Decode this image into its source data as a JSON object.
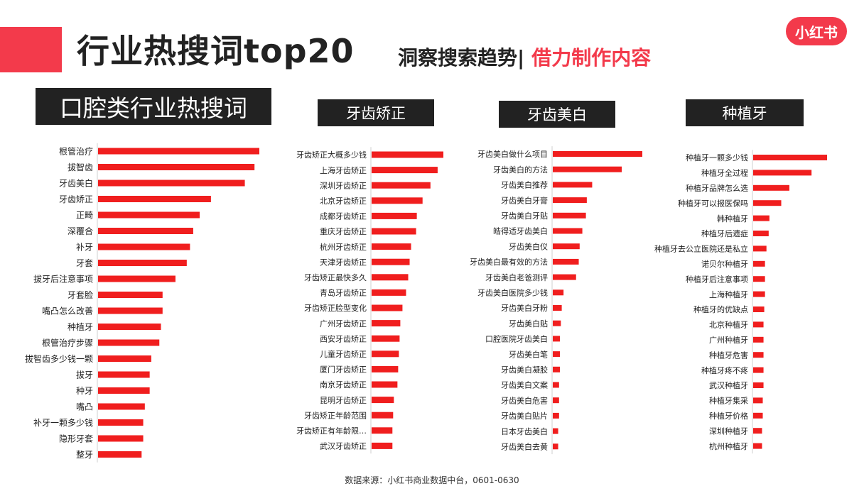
{
  "header": {
    "title": "行业热搜词top20",
    "subtitle_part1": "洞察搜索趋势|",
    "subtitle_part2": "借力制作内容",
    "logo_text": "小红书",
    "accent_color": "#f33a4b"
  },
  "source_note": "数据来源：小红书商业数据中台，0601-0630",
  "chart_data": [
    {
      "type": "bar",
      "orientation": "horizontal",
      "title": "口腔类行业热搜词",
      "bar_color": "#f01e1e",
      "categories": [
        "根管治疗",
        "拔智齿",
        "牙齿美白",
        "牙齿矫正",
        "正畸",
        "深覆合",
        "补牙",
        "牙套",
        "拔牙后注意事项",
        "牙套脸",
        "嘴凸怎么改善",
        "种植牙",
        "根管治疗步骤",
        "拔智齿多少钱一颗",
        "拔牙",
        "种牙",
        "嘴凸",
        "补牙一颗多少钱",
        "隐形牙套",
        "整牙"
      ],
      "values": [
        100,
        97,
        91,
        70,
        63,
        59,
        57,
        55,
        48,
        40,
        40,
        39,
        38,
        33,
        32,
        32,
        29,
        28,
        28,
        27
      ]
    },
    {
      "type": "bar",
      "orientation": "horizontal",
      "title": "牙齿矫正",
      "bar_color": "#f01e1e",
      "categories": [
        "牙齿矫正大概多少钱",
        "上海牙齿矫正",
        "深圳牙齿矫正",
        "北京牙齿矫正",
        "成都牙齿矫正",
        "重庆牙齿矫正",
        "杭州牙齿矫正",
        "天津牙齿矫正",
        "牙齿矫正最快多久",
        "青岛牙齿矫正",
        "牙齿矫正脸型变化",
        "广州牙齿矫正",
        "西安牙齿矫正",
        "儿童牙齿矫正",
        "厦门牙齿矫正",
        "南京牙齿矫正",
        "昆明牙齿矫正",
        "牙齿矫正年龄范围",
        "牙齿矫正有年龄限…",
        "武汉牙齿矫正"
      ],
      "values": [
        100,
        92,
        82,
        71,
        63,
        62,
        55,
        53,
        51,
        48,
        43,
        40,
        39,
        38,
        37,
        36,
        31,
        30,
        29,
        29
      ]
    },
    {
      "type": "bar",
      "orientation": "horizontal",
      "title": "牙齿美白",
      "bar_color": "#f01e1e",
      "categories": [
        "牙齿美白做什么项目",
        "牙齿美白的方法",
        "牙齿美白推荐",
        "牙齿美白牙膏",
        "牙齿美白牙贴",
        "皓得适牙齿美白",
        "牙齿美白仪",
        "牙齿美白最有效的方法",
        "牙齿美白老爸测评",
        "牙齿美白医院多少钱",
        "牙齿美白牙粉",
        "牙齿美白贴",
        "口腔医院牙齿美白",
        "牙齿美白笔",
        "牙齿美白凝胶",
        "牙齿美白文案",
        "牙齿美白危害",
        "牙齿美白贴片",
        "日本牙齿美白",
        "牙齿美白去黄"
      ],
      "values": [
        100,
        77,
        44,
        38,
        37,
        33,
        30,
        29,
        26,
        12,
        10,
        9,
        8,
        8,
        8,
        7,
        7,
        7,
        6,
        6
      ]
    },
    {
      "type": "bar",
      "orientation": "horizontal",
      "title": "种植牙",
      "bar_color": "#f01e1e",
      "categories": [
        "种植牙一颗多少钱",
        "种植牙全过程",
        "种植牙品牌怎么选",
        "种植牙可以报医保吗",
        "韩种植牙",
        "种植牙后遗症",
        "种植牙去公立医院还是私立",
        "诺贝尔种植牙",
        "种植牙后注意事项",
        "上海种植牙",
        "种植牙的优缺点",
        "北京种植牙",
        "广州种植牙",
        "种植牙危害",
        "种植牙疼不疼",
        "武汉种植牙",
        "种植牙集采",
        "种植牙价格",
        "深圳种植牙",
        "杭州种植牙"
      ],
      "values": [
        100,
        79,
        49,
        38,
        22,
        21,
        18,
        16,
        16,
        16,
        15,
        14,
        14,
        14,
        14,
        14,
        13,
        13,
        12,
        12
      ]
    }
  ]
}
